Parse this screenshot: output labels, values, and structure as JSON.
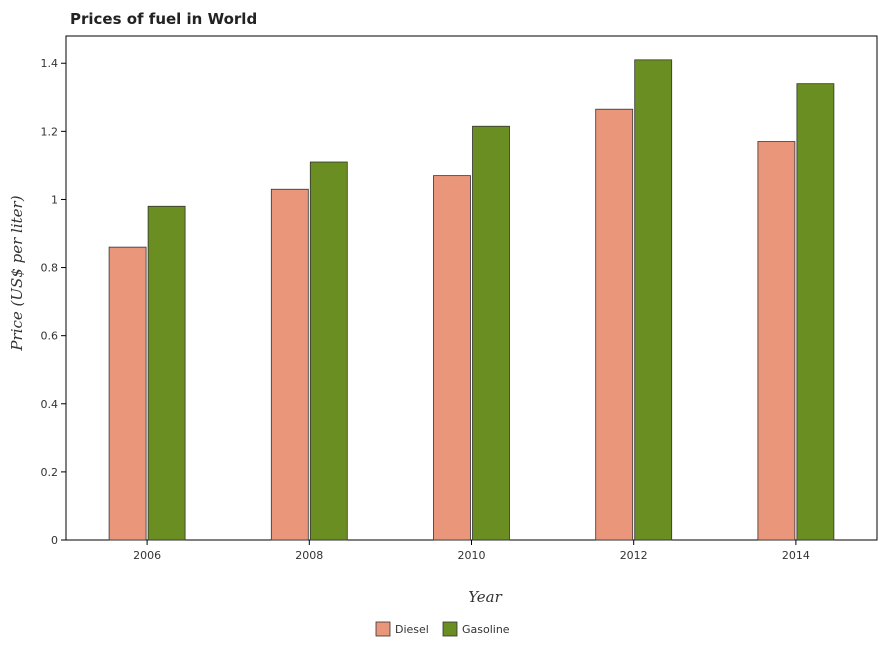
{
  "chart_data": {
    "type": "bar",
    "title": "Prices of fuel in World",
    "xlabel": "Year",
    "ylabel": "Price (US$ per liter)",
    "categories": [
      "2006",
      "2008",
      "2010",
      "2012",
      "2014"
    ],
    "series": [
      {
        "name": "Diesel",
        "color": "#e9967a",
        "values": [
          0.86,
          1.03,
          1.07,
          1.265,
          1.17
        ]
      },
      {
        "name": "Gasoline",
        "color": "#6b8e23",
        "values": [
          0.98,
          1.11,
          1.215,
          1.41,
          1.34
        ]
      }
    ],
    "ylim": [
      0,
      1.48
    ],
    "yticks": [
      0,
      0.2,
      0.4,
      0.6,
      0.8,
      1,
      1.2,
      1.4
    ],
    "ytick_labels": [
      "0",
      "0.2",
      "0.4",
      "0.6",
      "0.8",
      "1",
      "1.2",
      "1.4"
    ],
    "grid": false,
    "legend_position": "bottom-center"
  }
}
